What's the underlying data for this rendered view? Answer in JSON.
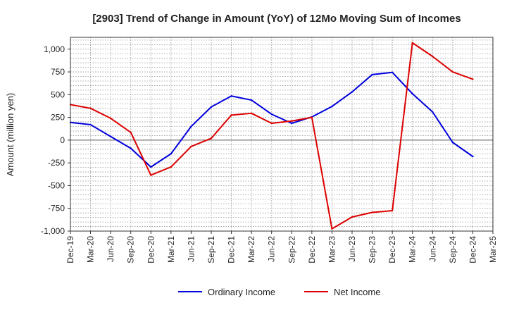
{
  "chart_data": {
    "type": "line",
    "title": "[2903]  Trend of Change in Amount (YoY) of 12Mo Moving Sum of Incomes",
    "ylabel": "Amount (million yen)",
    "xlabel": "",
    "categories": [
      "Dec-19",
      "Mar-20",
      "Jun-20",
      "Sep-20",
      "Dec-20",
      "Mar-21",
      "Jun-21",
      "Sep-21",
      "Dec-21",
      "Mar-22",
      "Jun-22",
      "Sep-22",
      "Dec-22",
      "Mar-23",
      "Jun-23",
      "Sep-23",
      "Dec-23",
      "Mar-24",
      "Jun-24",
      "Sep-24",
      "Dec-24",
      "Mar-25"
    ],
    "y_ticks": [
      1000,
      750,
      500,
      250,
      0,
      -250,
      -500,
      -750,
      -1000
    ],
    "y_tick_labels": [
      "1,000",
      "750",
      "500",
      "250",
      "0",
      "-250",
      "-500",
      "-750",
      "-1,000"
    ],
    "ylim": [
      -1000,
      1130
    ],
    "grid": true,
    "legend_position": "bottom",
    "series": [
      {
        "name": "Ordinary Income",
        "color": "#0000dd",
        "values": [
          195,
          170,
          40,
          -90,
          -295,
          -150,
          150,
          365,
          485,
          440,
          285,
          185,
          255,
          370,
          530,
          720,
          745,
          510,
          310,
          -25,
          -180,
          null
        ]
      },
      {
        "name": "Net Income",
        "color": "#dd0000",
        "values": [
          390,
          350,
          240,
          85,
          -385,
          -295,
          -70,
          20,
          275,
          295,
          185,
          210,
          250,
          -975,
          -845,
          -795,
          -775,
          1070,
          920,
          750,
          670,
          null
        ]
      }
    ]
  }
}
